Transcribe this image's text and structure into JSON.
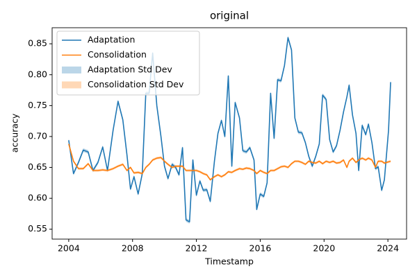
{
  "chart_data": {
    "type": "line",
    "title": "original",
    "x_label": "Timestamp",
    "y_label": "accuracy",
    "x": [
      2004.0,
      2004.3,
      2004.61,
      2004.91,
      2005.22,
      2005.52,
      2005.83,
      2006.13,
      2006.43,
      2006.78,
      2007.09,
      2007.39,
      2007.65,
      2007.87,
      2008.09,
      2008.35,
      2008.61,
      2008.83,
      2009.04,
      2009.26,
      2009.52,
      2009.78,
      2010.0,
      2010.22,
      2010.48,
      2010.7,
      2010.91,
      2011.13,
      2011.35,
      2011.57,
      2011.78,
      2012.0,
      2012.22,
      2012.43,
      2012.65,
      2012.87,
      2013.13,
      2013.35,
      2013.57,
      2013.78,
      2014.0,
      2014.22,
      2014.43,
      2014.7,
      2014.91,
      2015.13,
      2015.35,
      2015.61,
      2015.78,
      2016.0,
      2016.22,
      2016.43,
      2016.65,
      2016.87,
      2017.09,
      2017.3,
      2017.52,
      2017.74,
      2017.96,
      2018.17,
      2018.39,
      2018.61,
      2018.83,
      2019.04,
      2019.26,
      2019.48,
      2019.7,
      2019.91,
      2020.13,
      2020.35,
      2020.57,
      2020.78,
      2021.0,
      2021.22,
      2021.43,
      2021.57,
      2021.78,
      2022.0,
      2022.17,
      2022.39,
      2022.61,
      2022.78,
      2023.0,
      2023.22,
      2023.39,
      2023.61,
      2023.78,
      2024.04,
      2024.17
    ],
    "series": [
      {
        "name": "Adaptation",
        "color": "#1f77b4",
        "std_name": "Adaptation Std Dev",
        "std_color": "#1f77b4",
        "std": 0.003,
        "values": [
          0.694,
          0.64,
          0.658,
          0.678,
          0.675,
          0.645,
          0.658,
          0.683,
          0.645,
          0.71,
          0.757,
          0.727,
          0.67,
          0.615,
          0.635,
          0.607,
          0.64,
          0.77,
          0.77,
          0.835,
          0.75,
          0.7,
          0.652,
          0.632,
          0.655,
          0.65,
          0.638,
          0.682,
          0.565,
          0.562,
          0.662,
          0.605,
          0.628,
          0.613,
          0.614,
          0.595,
          0.66,
          0.705,
          0.726,
          0.7,
          0.798,
          0.652,
          0.755,
          0.73,
          0.677,
          0.675,
          0.682,
          0.662,
          0.582,
          0.607,
          0.603,
          0.625,
          0.77,
          0.697,
          0.792,
          0.79,
          0.815,
          0.86,
          0.84,
          0.73,
          0.707,
          0.706,
          0.69,
          0.668,
          0.652,
          0.668,
          0.688,
          0.767,
          0.76,
          0.695,
          0.675,
          0.685,
          0.71,
          0.74,
          0.764,
          0.783,
          0.735,
          0.705,
          0.645,
          0.718,
          0.703,
          0.72,
          0.69,
          0.648,
          0.651,
          0.613,
          0.63,
          0.71,
          0.788
        ]
      },
      {
        "name": "Consolidation",
        "color": "#ff7f0e",
        "std_name": "Consolidation Std Dev",
        "std_color": "#ff7f0e",
        "std": 0.002,
        "values": [
          0.688,
          0.66,
          0.648,
          0.648,
          0.656,
          0.645,
          0.645,
          0.646,
          0.645,
          0.648,
          0.652,
          0.655,
          0.645,
          0.65,
          0.641,
          0.642,
          0.64,
          0.65,
          0.655,
          0.662,
          0.665,
          0.666,
          0.66,
          0.655,
          0.65,
          0.652,
          0.652,
          0.652,
          0.645,
          0.645,
          0.645,
          0.645,
          0.643,
          0.64,
          0.638,
          0.63,
          0.635,
          0.638,
          0.635,
          0.638,
          0.643,
          0.642,
          0.645,
          0.648,
          0.647,
          0.649,
          0.648,
          0.645,
          0.64,
          0.645,
          0.642,
          0.64,
          0.645,
          0.645,
          0.648,
          0.651,
          0.652,
          0.65,
          0.656,
          0.66,
          0.66,
          0.658,
          0.655,
          0.66,
          0.658,
          0.657,
          0.66,
          0.656,
          0.66,
          0.658,
          0.66,
          0.657,
          0.658,
          0.662,
          0.65,
          0.66,
          0.665,
          0.658,
          0.662,
          0.665,
          0.662,
          0.665,
          0.662,
          0.65,
          0.66,
          0.66,
          0.657,
          0.659,
          0.66
        ]
      }
    ],
    "xlim": [
      2002.96,
      2025.17
    ],
    "xticks": [
      2004,
      2008,
      2012,
      2016,
      2020,
      2024
    ],
    "ylim": [
      0.534,
      0.876
    ],
    "yticks": [
      0.55,
      {
        "value": 0.6,
        "label": "0.60"
      },
      0.65,
      {
        "value": 0.7,
        "label": "0.70"
      },
      0.75,
      {
        "value": 0.8,
        "label": "0.80"
      },
      0.85
    ],
    "legend": "upper left",
    "grid": false
  }
}
